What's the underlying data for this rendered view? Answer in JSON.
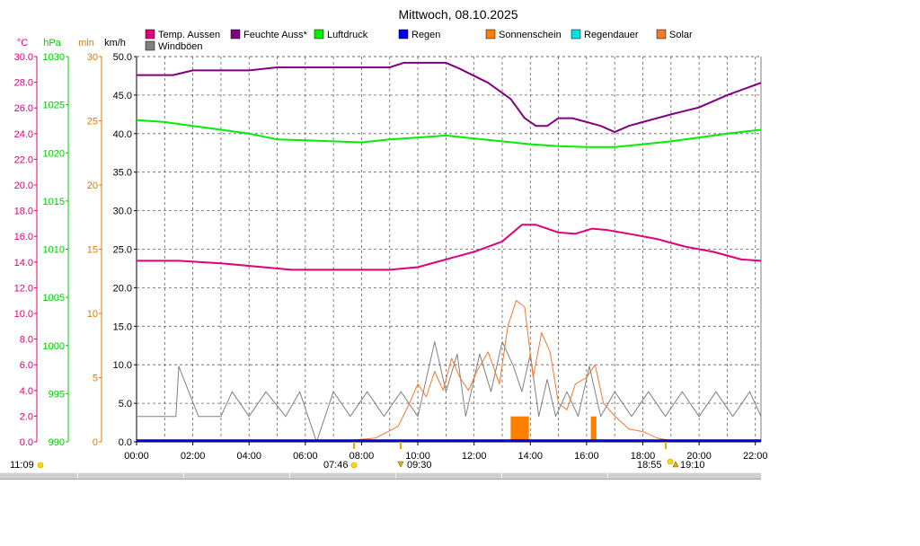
{
  "chart_data": {
    "type": "line",
    "title": "Mittwoch, 08.10.2025",
    "x_ticks": [
      "00:00",
      "02:00",
      "04:00",
      "06:00",
      "08:00",
      "10:00",
      "12:00",
      "14:00",
      "16:00",
      "18:00",
      "20:00",
      "22:00"
    ],
    "x_range_hours": [
      0,
      22.2
    ],
    "grid": true,
    "legend_position": "top",
    "axes": [
      {
        "unit": "°C",
        "range": [
          0,
          30
        ],
        "ticks": [
          "0.0",
          "2.0",
          "4.0",
          "6.0",
          "8.0",
          "10.0",
          "12.0",
          "14.0",
          "16.0",
          "18.0",
          "20.0",
          "22.0",
          "24.0",
          "26.0",
          "28.0",
          "30.0"
        ],
        "color": "#e0007a"
      },
      {
        "unit": "hPa",
        "range": [
          990,
          1030
        ],
        "ticks": [
          "990",
          "995",
          "1000",
          "1005",
          "1010",
          "1015",
          "1020",
          "1025",
          "1030"
        ],
        "color": "#00cc00"
      },
      {
        "unit": "min",
        "range": [
          0,
          30
        ],
        "ticks": [
          "0",
          "5",
          "10",
          "15",
          "20",
          "25",
          "30"
        ],
        "color": "#e07a00"
      },
      {
        "unit": "km/h",
        "range": [
          0,
          50
        ],
        "ticks": [
          "0.0",
          "5.0",
          "10.0",
          "15.0",
          "20.0",
          "25.0",
          "30.0",
          "35.0",
          "40.0",
          "45.0",
          "50.0"
        ],
        "color": "#000000"
      }
    ],
    "legend": [
      {
        "name": "Temp. Aussen",
        "color": "#e0007a"
      },
      {
        "name": "Feuchte Auss*",
        "color": "#800080"
      },
      {
        "name": "Luftdruck",
        "color": "#00ee00"
      },
      {
        "name": "Regen",
        "color": "#0000ee"
      },
      {
        "name": "Sonnenschein",
        "color": "#ff8000"
      },
      {
        "name": "Regendauer",
        "color": "#00e0e0"
      },
      {
        "name": "Solar",
        "color": "#f07830"
      },
      {
        "name": "Windböen",
        "color": "#808080"
      }
    ],
    "series": [
      {
        "name": "Temp. Aussen",
        "axis": "°C",
        "color": "#e0007a",
        "x": [
          0,
          1.5,
          3,
          4.5,
          5.5,
          7,
          8,
          9,
          10,
          11,
          12,
          13,
          13.7,
          14.2,
          15,
          15.6,
          16.2,
          16.7,
          17.5,
          18.5,
          19.5,
          20.5,
          21.5,
          22.2
        ],
        "y": [
          14.1,
          14.1,
          13.9,
          13.6,
          13.4,
          13.4,
          13.4,
          13.4,
          13.6,
          14.2,
          14.8,
          15.6,
          16.9,
          16.9,
          16.3,
          16.2,
          16.6,
          16.5,
          16.2,
          15.8,
          15.2,
          14.8,
          14.2,
          14.1
        ]
      },
      {
        "name": "Feuchte Auss*",
        "axis": "km/h",
        "color": "#800080",
        "x": [
          0,
          1.3,
          2,
          4,
          5,
          9,
          9.5,
          11,
          11.5,
          12.5,
          13.3,
          13.8,
          14.2,
          14.6,
          15,
          15.5,
          16,
          16.5,
          17,
          17.5,
          18,
          19,
          20,
          21,
          22.2
        ],
        "y": [
          47.6,
          47.6,
          48.2,
          48.2,
          48.6,
          48.6,
          49.2,
          49.2,
          48.4,
          46.6,
          44.5,
          42.0,
          41.0,
          41.0,
          42.0,
          42.0,
          41.5,
          41.0,
          40.2,
          41.0,
          41.5,
          42.5,
          43.4,
          45.0,
          46.6
        ]
      },
      {
        "name": "Luftdruck",
        "axis": "hPa",
        "color": "#00ee00",
        "x": [
          0,
          1,
          2,
          3,
          4,
          5,
          6,
          7,
          8,
          9,
          10,
          11,
          12,
          13,
          14,
          15,
          16,
          17,
          18,
          19,
          20,
          21,
          22.2
        ],
        "y": [
          1023.4,
          1023.2,
          1022.8,
          1022.4,
          1022.0,
          1021.4,
          1021.3,
          1021.2,
          1021.1,
          1021.4,
          1021.6,
          1021.8,
          1021.5,
          1021.2,
          1020.9,
          1020.7,
          1020.6,
          1020.6,
          1020.9,
          1021.2,
          1021.6,
          1022.0,
          1022.4
        ]
      },
      {
        "name": "Regen",
        "axis": "km/h",
        "color": "#0000ee",
        "x": [
          0,
          22.2
        ],
        "y": [
          0.15,
          0.15
        ]
      },
      {
        "name": "Solar",
        "axis": "min",
        "color": "#f07830",
        "x": [
          7.5,
          8.5,
          9.3,
          9.7,
          10,
          10.3,
          10.6,
          10.9,
          11.2,
          11.5,
          11.8,
          12.1,
          12.5,
          12.9,
          13.2,
          13.5,
          13.8,
          14.1,
          14.4,
          14.7,
          15.0,
          15.3,
          15.6,
          16.0,
          16.3,
          16.6,
          17.0,
          17.5,
          18.0,
          18.5,
          19.0
        ],
        "y": [
          0.1,
          0.3,
          1.2,
          3.0,
          4.5,
          3.5,
          5.5,
          4.0,
          6.5,
          5.0,
          4.0,
          5.5,
          7.0,
          4.5,
          9.0,
          11.0,
          10.5,
          5.0,
          8.5,
          7.0,
          3.0,
          2.5,
          4.5,
          5.0,
          6.0,
          3.0,
          2.0,
          1.0,
          0.8,
          0.3,
          0.1
        ]
      },
      {
        "name": "Windböen",
        "axis": "km/h",
        "color": "#808080",
        "x": [
          0,
          0.7,
          1.4,
          1.5,
          2.2,
          3,
          3.4,
          4,
          4.6,
          5.3,
          5.8,
          6.4,
          7,
          7.6,
          8.2,
          8.8,
          9.4,
          10,
          10.6,
          11,
          11.4,
          11.7,
          12.2,
          12.6,
          13,
          13.4,
          13.7,
          14,
          14.3,
          14.6,
          14.9,
          15.3,
          15.7,
          16.1,
          16.5,
          17,
          17.6,
          18.2,
          18.8,
          19.4,
          20,
          20.6,
          21.2,
          21.8,
          22.2
        ],
        "y": [
          3.3,
          3.3,
          3.3,
          9.8,
          3.3,
          3.3,
          6.5,
          3.3,
          6.5,
          3.3,
          6.5,
          0,
          6.5,
          3.3,
          6.5,
          3.3,
          6.5,
          3.3,
          13,
          6.5,
          11.4,
          3.3,
          11.4,
          6.5,
          13,
          9.8,
          6.5,
          11.4,
          3.3,
          8.1,
          3.3,
          6.5,
          3.3,
          9.8,
          3.3,
          6.5,
          3.3,
          6.5,
          3.3,
          6.5,
          3.3,
          6.5,
          3.3,
          6.5,
          3.3
        ]
      }
    ],
    "bars": [
      {
        "name": "Sonnenschein",
        "axis": "km/h",
        "color": "#ff8000",
        "intervals": [
          [
            13.3,
            13.95,
            3.3
          ],
          [
            16.15,
            16.35,
            3.3
          ]
        ]
      }
    ],
    "markers": {
      "sunrise": "07:46",
      "sunset": "18:55",
      "moon_set": "09:30",
      "moon_rise": "19:10",
      "left_time": "11:09"
    }
  }
}
